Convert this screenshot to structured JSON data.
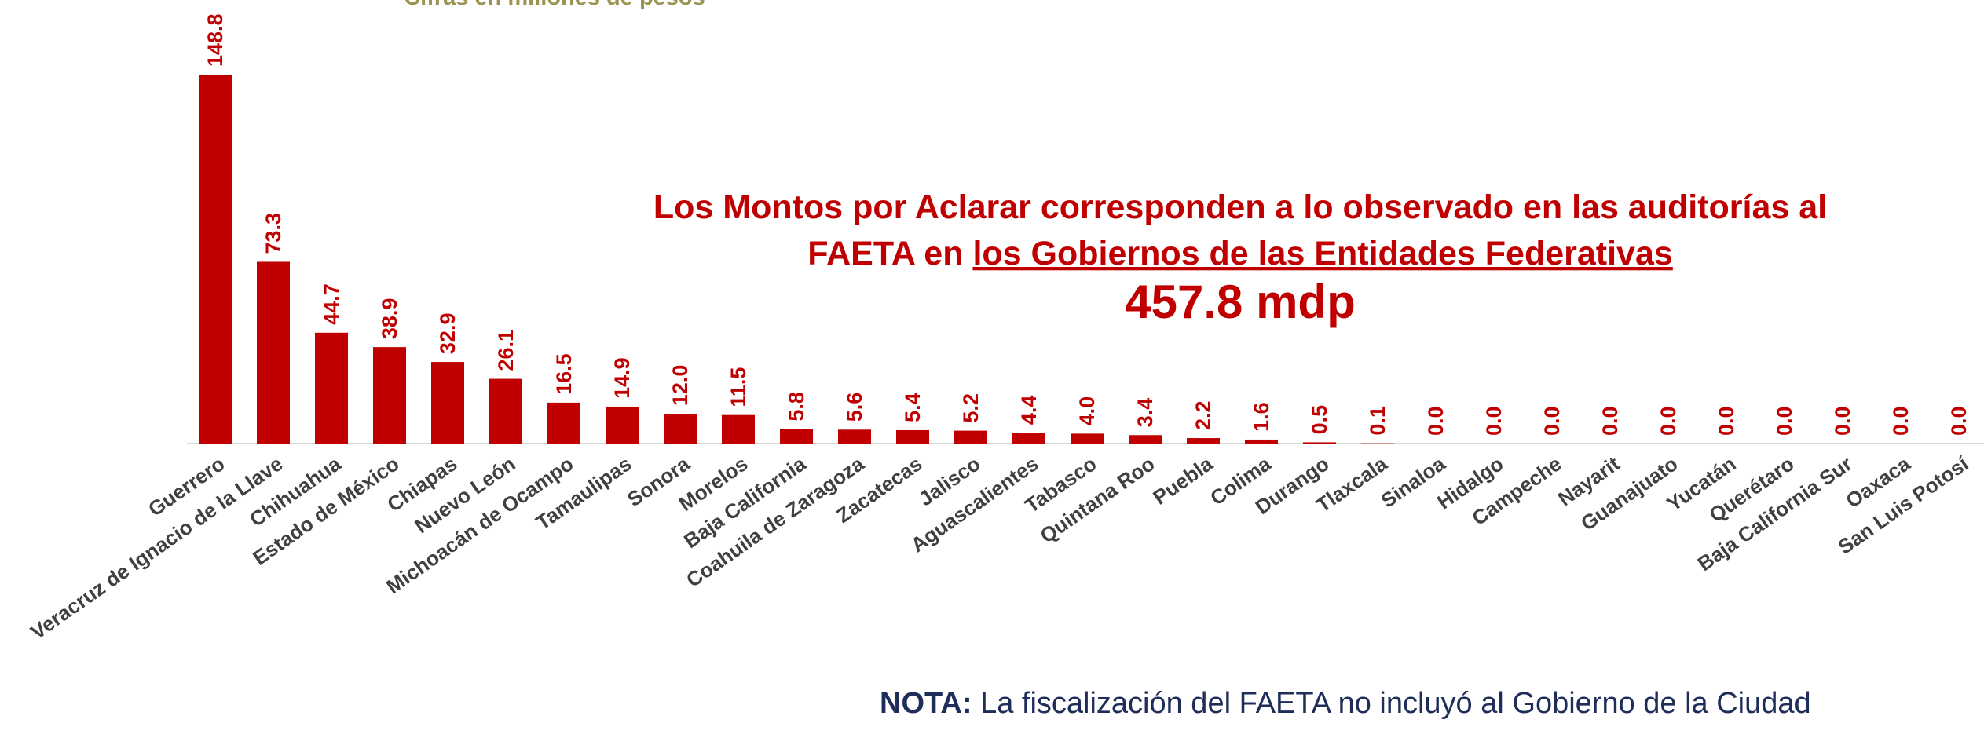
{
  "chart_data": {
    "type": "bar",
    "subtitle": "Cifras en millones de pesos",
    "categories": [
      "Guerrero",
      "Veracruz de Ignacio de la Llave",
      "Chihuahua",
      "Estado de México",
      "Chiapas",
      "Nuevo León",
      "Michoacán de Ocampo",
      "Tamaulipas",
      "Sonora",
      "Morelos",
      "Baja California",
      "Coahuila de Zaragoza",
      "Zacatecas",
      "Jalisco",
      "Aguascalientes",
      "Tabasco",
      "Quintana Roo",
      "Puebla",
      "Colima",
      "Durango",
      "Tlaxcala",
      "Sinaloa",
      "Hidalgo",
      "Campeche",
      "Nayarit",
      "Guanajuato",
      "Yucatán",
      "Querétaro",
      "Baja California Sur",
      "Oaxaca",
      "San Luis Potosí"
    ],
    "values": [
      148.8,
      73.3,
      44.7,
      38.9,
      32.9,
      26.1,
      16.5,
      14.9,
      12.0,
      11.5,
      5.8,
      5.6,
      5.4,
      5.2,
      4.4,
      4.0,
      3.4,
      2.2,
      1.6,
      0.5,
      0.1,
      0,
      0,
      0,
      0,
      0,
      0,
      0,
      0,
      0,
      0
    ],
    "value_labels": [
      "148.8",
      "73.3",
      "44.7",
      "38.9",
      "32.9",
      "26.1",
      "16.5",
      "14.9",
      "12.0",
      "11.5",
      "5.8",
      "5.6",
      "5.4",
      "5.2",
      "4.4",
      "4.0",
      "3.4",
      "2.2",
      "1.6",
      "0.5",
      "0.1",
      "0.0",
      "0.0",
      "0.0",
      "0.0",
      "0.0",
      "0.0",
      "0.0",
      "0.0",
      "0.0",
      "0.0"
    ],
    "color": "#c00000",
    "annotation": {
      "line1": "Los Montos por Aclarar corresponden a lo observado en las auditorías al",
      "line2_prefix": "FAETA en",
      "line2_underlined": "los Gobiernos de las Entidades Federativas",
      "total": "457.8 mdp"
    },
    "note": {
      "label": "NOTA:",
      "text": "La fiscalización del FAETA no incluyó al Gobierno de la Ciudad"
    }
  }
}
